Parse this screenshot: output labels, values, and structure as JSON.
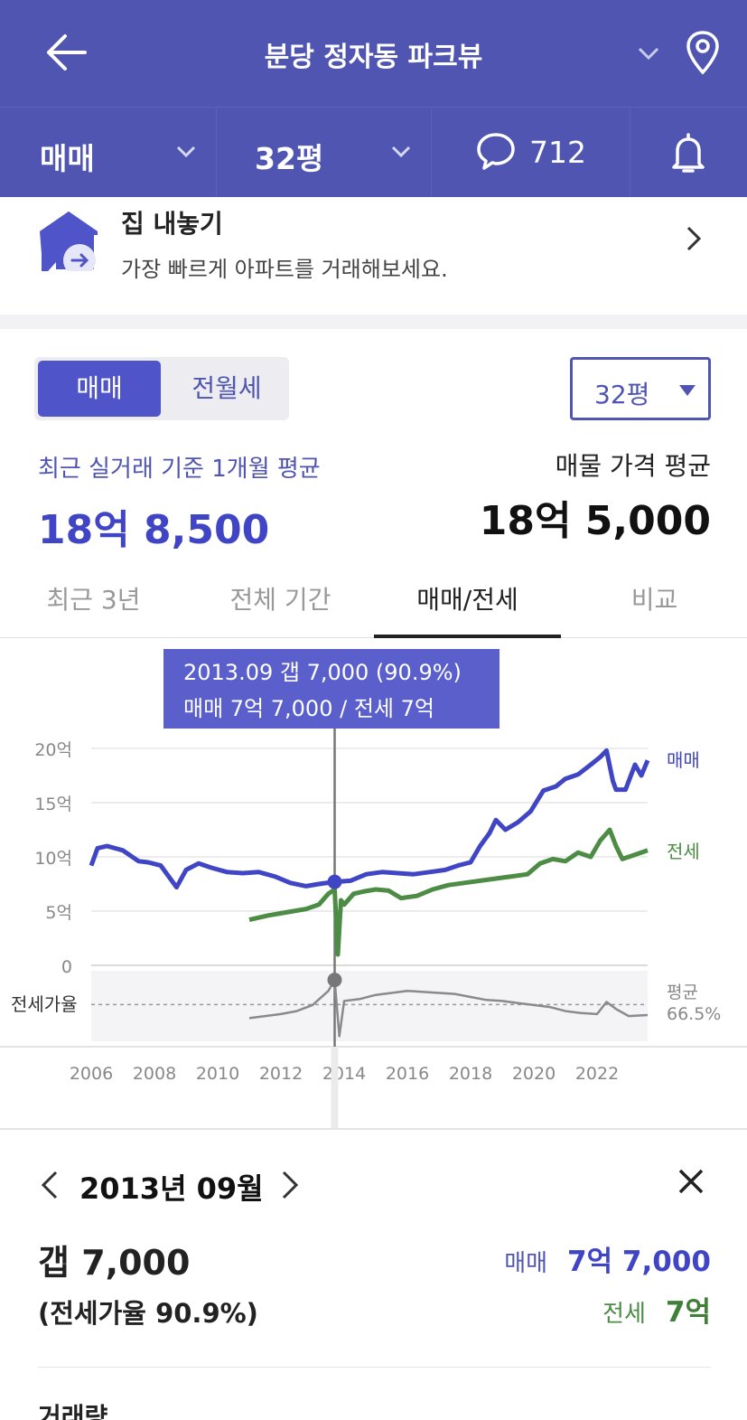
{
  "header": {
    "title": "분당 정자동 파크뷰"
  },
  "subbar": {
    "trade_type": "매매",
    "size": "32평",
    "comment_count": "712"
  },
  "banner": {
    "title": "집 내놓기",
    "subtitle": "가장 빠르게 아파트를 거래해보세요."
  },
  "price_panel": {
    "segments": [
      "매매",
      "전월세"
    ],
    "size_select": "32평",
    "avg_label": "최근 실거래 기준 1개월 평균",
    "avg_value": "18억 8,500",
    "ask_label": "매물 가격 평균",
    "ask_value": "18억 5,000"
  },
  "tabs": [
    "최근 3년",
    "전체 기간",
    "매매/전세",
    "비교"
  ],
  "tooltip": {
    "line1": "2013.09  갭 7,000 (90.9%)",
    "line2": "매매 7억 7,000 / 전세 7억"
  },
  "colors": {
    "header": "#4f55b0",
    "sale": "#3f45c4",
    "jeonse": "#4c8c45",
    "ratio": "#8a8a8a"
  },
  "chart_data": {
    "type": "line",
    "x_ticks": [
      "2006",
      "2008",
      "2010",
      "2012",
      "2014",
      "2016",
      "2018",
      "2020",
      "2022"
    ],
    "y_ticks": [
      "20억",
      "15억",
      "10억",
      "5억",
      "0"
    ],
    "ylim": [
      0,
      20
    ],
    "ylabel_units": "억",
    "ratio_label": "전세가율",
    "avg_label": "평균",
    "avg_value": "66.5%",
    "highlight": {
      "x": 2013.7,
      "sale": 7.7,
      "jeonse": 7.0
    },
    "series": [
      {
        "name": "매매",
        "x": [
          2006.0,
          2006.2,
          2006.5,
          2007.0,
          2007.5,
          2007.8,
          2008.2,
          2008.7,
          2009.0,
          2009.4,
          2009.8,
          2010.3,
          2010.8,
          2011.3,
          2011.8,
          2012.3,
          2012.8,
          2013.2,
          2013.7,
          2014.2,
          2014.7,
          2015.2,
          2015.7,
          2016.2,
          2016.7,
          2017.2,
          2017.6,
          2018.0,
          2018.3,
          2018.6,
          2018.8,
          2019.1,
          2019.5,
          2019.9,
          2020.3,
          2020.7,
          2021.0,
          2021.4,
          2021.8,
          2022.1,
          2022.3,
          2022.5,
          2022.6,
          2022.9,
          2023.2,
          2023.4,
          2023.6
        ],
        "values": [
          9.2,
          10.8,
          11.0,
          10.6,
          9.6,
          9.5,
          9.2,
          7.2,
          8.8,
          9.4,
          9.0,
          8.6,
          8.5,
          8.6,
          8.2,
          7.6,
          7.3,
          7.5,
          7.7,
          7.8,
          8.4,
          8.6,
          8.5,
          8.4,
          8.6,
          8.8,
          9.2,
          9.5,
          11.0,
          12.2,
          13.4,
          12.5,
          13.2,
          14.2,
          16.1,
          16.5,
          17.2,
          17.6,
          18.5,
          19.2,
          19.8,
          17.0,
          16.2,
          16.2,
          18.5,
          17.5,
          18.9
        ]
      },
      {
        "name": "전세",
        "x": [
          2011.0,
          2011.3,
          2011.6,
          2012.0,
          2012.4,
          2012.8,
          2013.2,
          2013.5,
          2013.7,
          2013.8,
          2013.9,
          2014.0,
          2014.3,
          2014.6,
          2015.0,
          2015.4,
          2015.8,
          2016.3,
          2016.8,
          2017.3,
          2017.8,
          2018.3,
          2018.8,
          2019.3,
          2019.8,
          2020.2,
          2020.6,
          2021.0,
          2021.4,
          2021.8,
          2022.1,
          2022.4,
          2022.6,
          2022.8,
          2023.2,
          2023.6
        ],
        "values": [
          4.2,
          4.4,
          4.6,
          4.8,
          5.0,
          5.2,
          5.6,
          6.6,
          7.0,
          1.0,
          6.0,
          5.6,
          6.6,
          6.8,
          7.0,
          6.9,
          6.2,
          6.4,
          7.0,
          7.4,
          7.6,
          7.8,
          8.0,
          8.2,
          8.4,
          9.4,
          9.8,
          9.6,
          10.4,
          10.0,
          11.5,
          12.5,
          11.0,
          9.8,
          10.2,
          10.6
        ]
      },
      {
        "name": "전세가율",
        "x": [
          2011.0,
          2011.5,
          2012.0,
          2012.5,
          2013.0,
          2013.5,
          2013.7,
          2013.85,
          2014.0,
          2014.5,
          2015.0,
          2015.5,
          2016.0,
          2016.5,
          2017.0,
          2017.5,
          2018.0,
          2018.5,
          2019.0,
          2019.5,
          2020.0,
          2020.5,
          2021.0,
          2021.5,
          2022.0,
          2022.3,
          2022.6,
          2023.0,
          2023.6
        ],
        "values": [
          53,
          55,
          57,
          60,
          66,
          80,
          90.9,
          35,
          70,
          72,
          76,
          78,
          80,
          79,
          78,
          77,
          74,
          71,
          70,
          68,
          66,
          64,
          60,
          58,
          57,
          69,
          62,
          55,
          56
        ]
      }
    ]
  },
  "detail": {
    "month": "2013년 09월",
    "gap": "갭 7,000",
    "ratio": "(전세가율 90.9%)",
    "sale_label": "매매",
    "sale_value": "7억 7,000",
    "jeonse_label": "전세",
    "jeonse_value": "7억",
    "next_heading": "거래량"
  }
}
